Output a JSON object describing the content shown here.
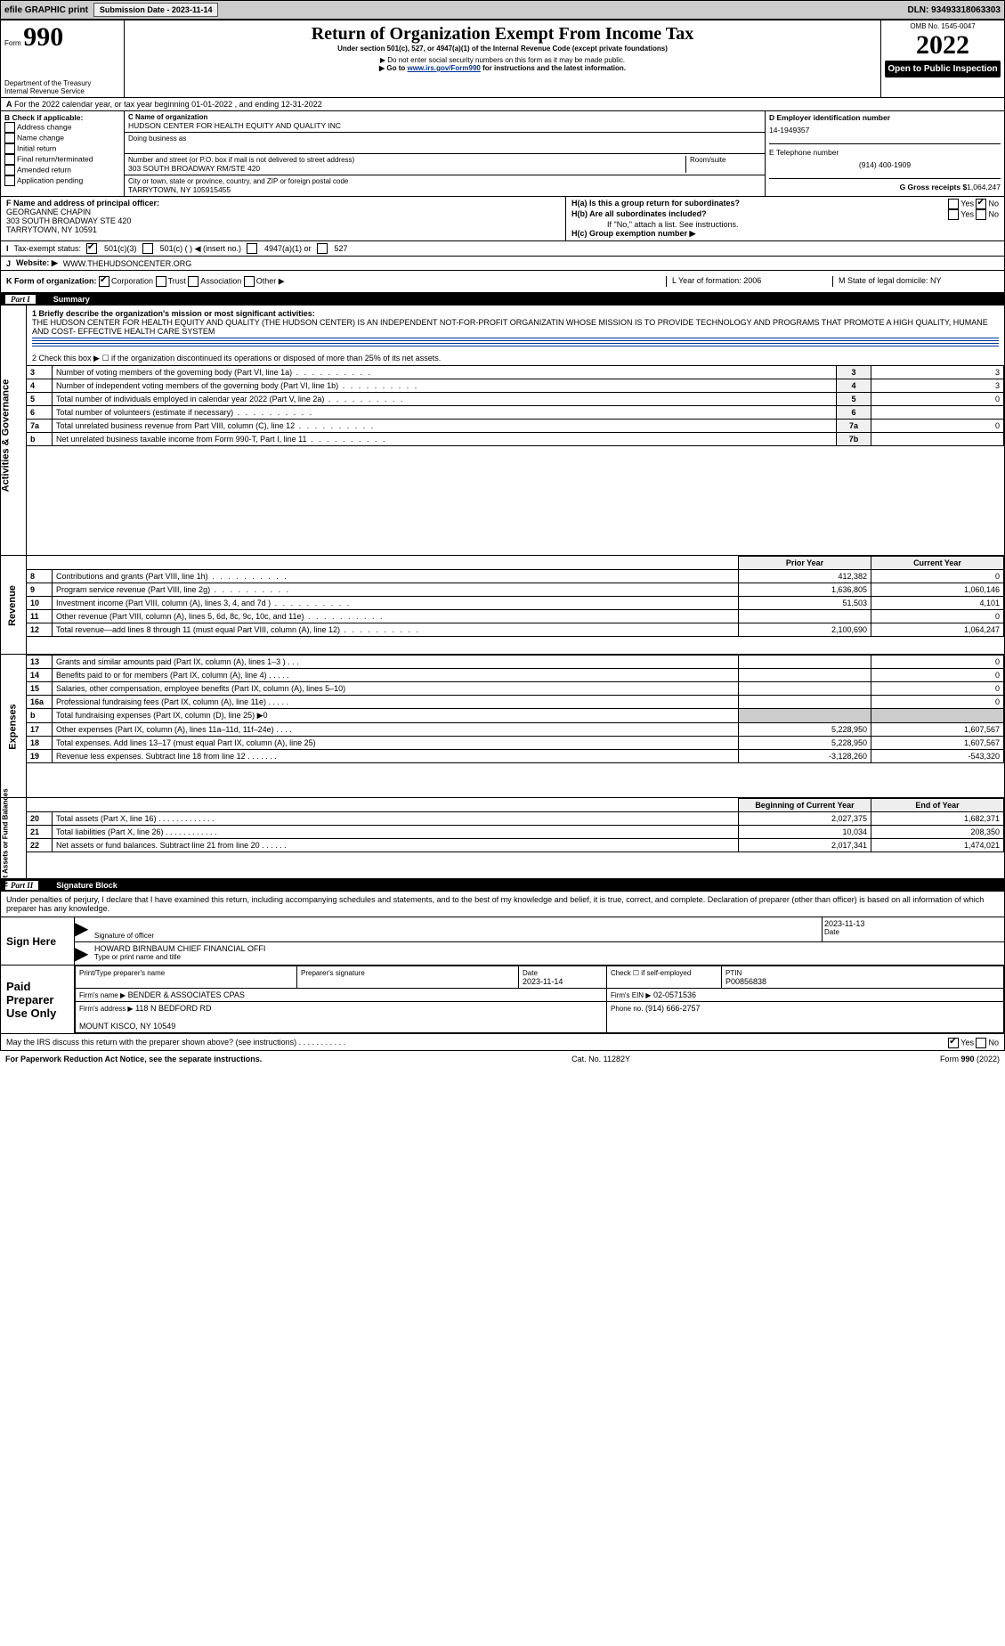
{
  "topbar": {
    "efile": "efile GRAPHIC print",
    "submission_label": "Submission Date - 2023-11-14",
    "dln_label": "DLN: 93493318063303"
  },
  "header": {
    "form_word": "Form",
    "form_no": "990",
    "title": "Return of Organization Exempt From Income Tax",
    "subtitle": "Under section 501(c), 527, or 4947(a)(1) of the Internal Revenue Code (except private foundations)",
    "warn1": "▶ Do not enter social security numbers on this form as it may be made public.",
    "warn2_pre": "▶ Go to ",
    "warn2_link": "www.irs.gov/Form990",
    "warn2_post": " for instructions and the latest information.",
    "dept": "Department of the Treasury\nInternal Revenue Service",
    "omb": "OMB No. 1545-0047",
    "year": "2022",
    "openpub": "Open to Public Inspection"
  },
  "periodA": "For the 2022 calendar year, or tax year beginning 01-01-2022    , and ending 12-31-2022",
  "colB": {
    "hdr": "B Check if applicable:",
    "i1": "Address change",
    "i2": "Name change",
    "i3": "Initial return",
    "i4": "Final return/terminated",
    "i5": "Amended return",
    "i6": "Application pending"
  },
  "colC": {
    "name_lbl": "C Name of organization",
    "name": "HUDSON CENTER FOR HEALTH EQUITY AND QUALITY INC",
    "dba_lbl": "Doing business as",
    "addr_lbl": "Number and street (or P.O. box if mail is not delivered to street address)",
    "room_lbl": "Room/suite",
    "addr": "303 SOUTH BROADWAY RM/STE 420",
    "city_lbl": "City or town, state or province, country, and ZIP or foreign postal code",
    "city": "TARRYTOWN, NY  105915455"
  },
  "colD": {
    "ein_lbl": "D Employer identification number",
    "ein": "14-1949357",
    "tel_lbl": "E Telephone number",
    "tel": "(914) 400-1909",
    "gross_lbl": "G Gross receipts $",
    "gross": "1,064,247"
  },
  "principal": {
    "lblF": "F Name and address of principal officer:",
    "name": "GEORGANNE CHAPIN",
    "addr": "303 SOUTH BROADWAY STE 420\nTARRYTOWN, NY  10591",
    "Ha": "H(a)  Is this a group return for subordinates?",
    "Hb": "H(b)  Are all subordinates included?",
    "yes": "Yes",
    "no": "No",
    "Hb_note": "If \"No,\" attach a list. See instructions.",
    "Hc": "H(c)  Group exemption number ▶"
  },
  "statusI": {
    "lbl": "Tax-exempt status:",
    "a": "501(c)(3)",
    "b": "501(c) (  ) ◀ (insert no.)",
    "c": "4947(a)(1) or",
    "d": "527",
    "prefix": "I"
  },
  "siteJ": {
    "lbl": "J",
    "label": "Website: ▶",
    "val": "WWW.THEHUDSONCENTER.ORG"
  },
  "KL": {
    "k": "K Form of organization:",
    "k1": "Corporation",
    "k2": "Trust",
    "k3": "Association",
    "k4": "Other ▶",
    "l": "L Year of formation: 2006",
    "m": "M State of legal domicile: NY"
  },
  "parts": {
    "p1": "Part I",
    "p1t": "Summary",
    "p2": "Part II",
    "p2t": "Signature Block"
  },
  "summary": {
    "l1": "1  Briefly describe the organization's mission or most significant activities:",
    "mission": "THE HUDSON CENTER FOR HEALTH EQUITY AND QUALITY (THE HUDSON CENTER) IS AN INDEPENDENT NOT-FOR-PROFIT ORGANIZATIN WHOSE MISSION IS TO PROVIDE TECHNOLOGY AND PROGRAMS THAT PROMOTE A HIGH QUALITY, HUMANE AND COST- EFFECTIVE HEALTH CARE SYSTEM",
    "l2": "2  Check this box ▶  ☐  if the organization discontinued its operations or disposed of more than 25% of its net assets.",
    "rows": [
      {
        "n": "3",
        "t": "Number of voting members of the governing body (Part VI, line 1a)",
        "b": "3",
        "v": "3"
      },
      {
        "n": "4",
        "t": "Number of independent voting members of the governing body (Part VI, line 1b)",
        "b": "4",
        "v": "3"
      },
      {
        "n": "5",
        "t": "Total number of individuals employed in calendar year 2022 (Part V, line 2a)",
        "b": "5",
        "v": "0"
      },
      {
        "n": "6",
        "t": "Total number of volunteers (estimate if necessary)",
        "b": "6",
        "v": ""
      },
      {
        "n": "7a",
        "t": "Total unrelated business revenue from Part VIII, column (C), line 12",
        "b": "7a",
        "v": "0"
      },
      {
        "n": "b",
        "t": "Net unrelated business taxable income from Form 990-T, Part I, line 11",
        "b": "7b",
        "v": ""
      }
    ],
    "col_prior": "Prior Year",
    "col_curr": "Current Year",
    "revenue": [
      {
        "n": "8",
        "t": "Contributions and grants (Part VIII, line 1h)",
        "p": "412,382",
        "c": "0"
      },
      {
        "n": "9",
        "t": "Program service revenue (Part VIII, line 2g)",
        "p": "1,636,805",
        "c": "1,060,146"
      },
      {
        "n": "10",
        "t": "Investment income (Part VIII, column (A), lines 3, 4, and 7d )",
        "p": "51,503",
        "c": "4,101"
      },
      {
        "n": "11",
        "t": "Other revenue (Part VIII, column (A), lines 5, 6d, 8c, 9c, 10c, and 11e)",
        "p": "",
        "c": "0"
      },
      {
        "n": "12",
        "t": "Total revenue—add lines 8 through 11 (must equal Part VIII, column (A), line 12)",
        "p": "2,100,690",
        "c": "1,064,247"
      }
    ],
    "expenses": [
      {
        "n": "13",
        "t": "Grants and similar amounts paid (Part IX, column (A), lines 1–3 )   .   .   .",
        "p": "",
        "c": "0"
      },
      {
        "n": "14",
        "t": "Benefits paid to or for members (Part IX, column (A), line 4)   .   .   .   .   .",
        "p": "",
        "c": "0"
      },
      {
        "n": "15",
        "t": "Salaries, other compensation, employee benefits (Part IX, column (A), lines 5–10)",
        "p": "",
        "c": "0"
      },
      {
        "n": "16a",
        "t": "Professional fundraising fees (Part IX, column (A), line 11e)   .   .   .   .   .",
        "p": "",
        "c": "0"
      },
      {
        "n": "b",
        "t": "Total fundraising expenses (Part IX, column (D), line 25) ▶0",
        "p": "__G__",
        "c": "__G__"
      },
      {
        "n": "17",
        "t": "Other expenses (Part IX, column (A), lines 11a–11d, 11f–24e)   .   .   .   .",
        "p": "5,228,950",
        "c": "1,607,567"
      },
      {
        "n": "18",
        "t": "Total expenses. Add lines 13–17 (must equal Part IX, column (A), line 25)",
        "p": "5,228,950",
        "c": "1,607,567"
      },
      {
        "n": "19",
        "t": "Revenue less expenses. Subtract line 18 from line 12   .   .   .   .   .   .   .",
        "p": "-3,128,260",
        "c": "-543,320"
      }
    ],
    "col_beg": "Beginning of Current Year",
    "col_end": "End of Year",
    "net": [
      {
        "n": "20",
        "t": "Total assets (Part X, line 16)   .   .   .   .   .   .   .   .   .   .   .   .   .",
        "p": "2,027,375",
        "c": "1,682,371"
      },
      {
        "n": "21",
        "t": "Total liabilities (Part X, line 26)   .   .   .   .   .   .   .   .   .   .   .   .",
        "p": "10,034",
        "c": "208,350"
      },
      {
        "n": "22",
        "t": "Net assets or fund balances. Subtract line 21 from line 20   .   .   .   .   .   .",
        "p": "2,017,341",
        "c": "1,474,021"
      }
    ],
    "side1": "Activities & Governance",
    "side2": "Revenue",
    "side3": "Expenses",
    "side4": "Net Assets or Fund Balances"
  },
  "sig": {
    "penalty": "Under penalties of perjury, I declare that I have examined this return, including accompanying schedules and statements, and to the best of my knowledge and belief, it is true, correct, and complete. Declaration of preparer (other than officer) is based on all information of which preparer has any knowledge.",
    "signhere": "Sign Here",
    "sigoff": "Signature of officer",
    "date": "Date",
    "datev": "2023-11-13",
    "name": "HOWARD BIRNBAUM  CHIEF FINANCIAL OFFI",
    "nametype": "Type or print name and title",
    "paid": "Paid Preparer Use Only",
    "pt": "Print/Type preparer's name",
    "ps": "Preparer's signature",
    "pd": "Date",
    "pdv": "2023-11-14",
    "chk": "Check ☐ if self-employed",
    "ptin": "PTIN",
    "ptinv": "P00856838",
    "firm": "Firm's name   ▶",
    "firmv": "BENDER & ASSOCIATES CPAS",
    "fein": "Firm's EIN ▶",
    "feinv": "02-0571536",
    "faddr": "Firm's address ▶",
    "faddrv": "118 N BEDFORD RD\n\nMOUNT KISCO, NY  10549",
    "phone": "Phone no.",
    "phonev": "(914) 666-2757",
    "may": "May the IRS discuss this return with the preparer shown above? (see instructions)   .   .   .   .   .   .   .   .   .   .   .",
    "yes": "Yes",
    "no": "No"
  },
  "footer": {
    "l": "For Paperwork Reduction Act Notice, see the separate instructions.",
    "c": "Cat. No. 11282Y",
    "r": "Form 990 (2022)"
  }
}
